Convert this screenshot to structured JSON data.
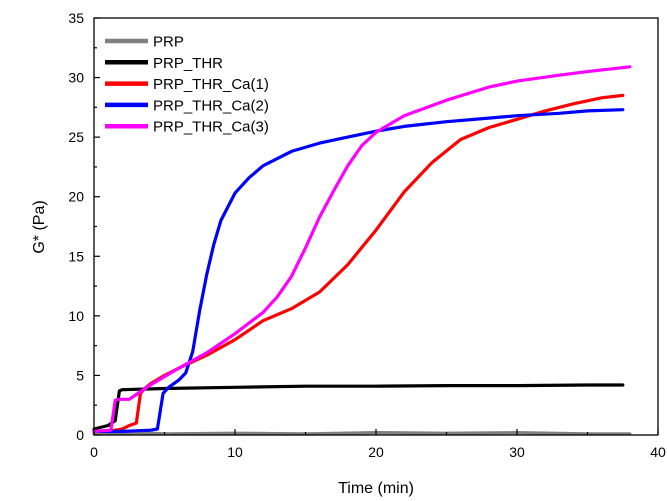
{
  "chart_data": {
    "type": "line",
    "title": "",
    "xlabel": "Time (min)",
    "ylabel": "G* (Pa)",
    "xlim": [
      0,
      40
    ],
    "ylim": [
      0,
      35
    ],
    "xticks": [
      "0",
      "10",
      "20",
      "30",
      "40"
    ],
    "yticks": [
      "0",
      "5",
      "10",
      "15",
      "20",
      "25",
      "30",
      "35"
    ],
    "grid": false,
    "legend_position": "top-left",
    "series": [
      {
        "name": "PRP",
        "color": "#808080",
        "x": [
          0,
          1,
          3,
          5,
          10,
          15,
          20,
          25,
          30,
          35,
          38
        ],
        "y": [
          0.1,
          0.1,
          0.2,
          0.1,
          0.15,
          0.1,
          0.2,
          0.15,
          0.2,
          0.1,
          0.1
        ]
      },
      {
        "name": "PRP_THR",
        "color": "#000000",
        "x": [
          0,
          1,
          1.5,
          1.8,
          2,
          5,
          10,
          15,
          20,
          25,
          30,
          35,
          37.5
        ],
        "y": [
          0.5,
          0.8,
          1.2,
          3.7,
          3.8,
          3.9,
          4.0,
          4.1,
          4.1,
          4.15,
          4.15,
          4.2,
          4.2
        ]
      },
      {
        "name": "PRP_THR_Ca(1)",
        "color": "#ff0000",
        "x": [
          0,
          1,
          2,
          2.5,
          3,
          3.3,
          3.6,
          4,
          5,
          6,
          8,
          10,
          12,
          14,
          16,
          18,
          20,
          22,
          24,
          26,
          28,
          30,
          32,
          34,
          36,
          37.5
        ],
        "y": [
          0.3,
          0.3,
          0.5,
          0.8,
          1.0,
          3.5,
          3.9,
          4.3,
          5.0,
          5.6,
          6.7,
          8.0,
          9.6,
          10.6,
          12.0,
          14.3,
          17.2,
          20.4,
          22.9,
          24.8,
          25.8,
          26.5,
          27.2,
          27.8,
          28.3,
          28.5
        ]
      },
      {
        "name": "PRP_THR_Ca(2)",
        "color": "#0000ff",
        "x": [
          0,
          2,
          4,
          4.5,
          4.9,
          5.3,
          6,
          6.5,
          7,
          7.5,
          8,
          8.5,
          9,
          10,
          11,
          12,
          14,
          16,
          18,
          20,
          22,
          25,
          28,
          30,
          33,
          35,
          37.5
        ],
        "y": [
          0.3,
          0.3,
          0.4,
          0.5,
          3.5,
          4.0,
          4.6,
          5.2,
          7.0,
          10.5,
          13.5,
          16.0,
          18.0,
          20.3,
          21.6,
          22.6,
          23.8,
          24.5,
          25.0,
          25.5,
          25.9,
          26.3,
          26.6,
          26.8,
          27.0,
          27.2,
          27.3
        ]
      },
      {
        "name": "PRP_THR_Ca(3)",
        "color": "#ff00ff",
        "x": [
          0,
          1.2,
          1.5,
          1.7,
          2.5,
          3,
          4,
          6,
          8,
          10,
          12,
          13,
          14,
          15,
          16,
          17,
          18,
          19,
          20,
          21,
          22,
          25,
          28,
          30,
          33,
          35,
          38
        ],
        "y": [
          0.3,
          0.4,
          2.9,
          3.0,
          3.0,
          3.4,
          4.2,
          5.6,
          6.9,
          8.5,
          10.3,
          11.6,
          13.3,
          15.7,
          18.3,
          20.5,
          22.6,
          24.3,
          25.4,
          26.1,
          26.8,
          28.1,
          29.2,
          29.7,
          30.2,
          30.5,
          30.9
        ]
      }
    ]
  }
}
